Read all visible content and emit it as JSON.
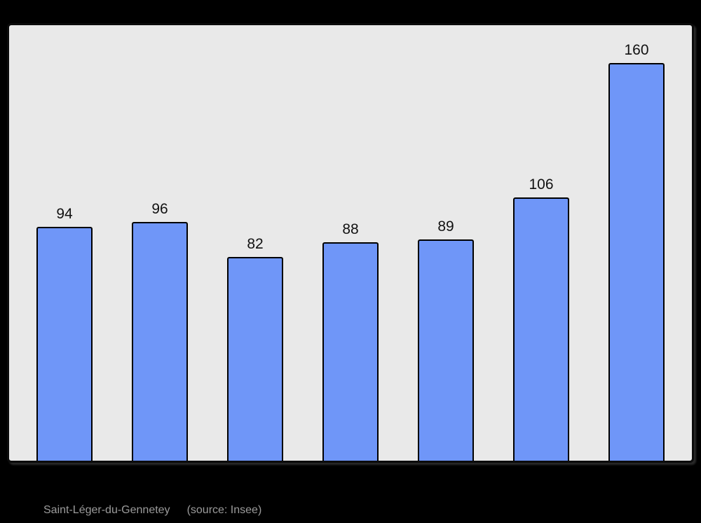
{
  "chart_data": {
    "type": "bar",
    "values": [
      94,
      96,
      82,
      88,
      89,
      106,
      160
    ],
    "categories": [
      "",
      "",
      "",
      "",
      "",
      "",
      ""
    ],
    "title": "",
    "xlabel": "",
    "ylabel": "",
    "ylim": [
      0,
      176
    ],
    "grid": false,
    "legend": false,
    "bar_color": "#6f96f8",
    "bar_border_color": "#000000",
    "plot_background": "#e9e9e9",
    "frame_border_color": "#0b0b0b",
    "value_label_color": "#111111"
  },
  "footer": {
    "title": "Saint-Léger-du-Gennetey",
    "source": "(source: Insee)",
    "color": "#9b9b9b"
  },
  "page": {
    "background": "#000000"
  }
}
